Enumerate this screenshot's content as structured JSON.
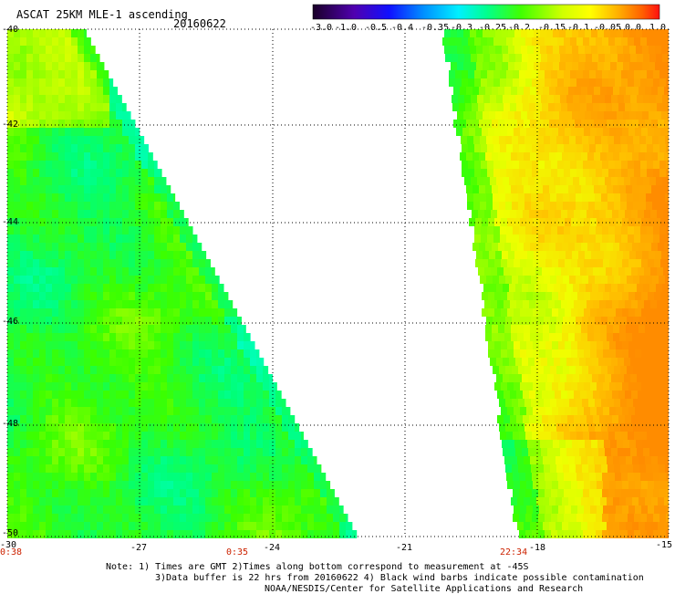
{
  "header": {
    "title": "ASCAT 25KM MLE-1 ascending",
    "date": "20160622"
  },
  "colorbar": {
    "labels": [
      "-3.0",
      "-1.0",
      "-0.5",
      "-0.4",
      "-0.35",
      "-0.3",
      "-0.25",
      "-0.2",
      "-0.15",
      "-0.1",
      "-0.05",
      "0.0",
      "1.0"
    ],
    "colors": [
      "#1a0030",
      "#4b00a0",
      "#1a1aff",
      "#0080ff",
      "#00c8ff",
      "#00ffd8",
      "#00ff70",
      "#40ff00",
      "#c0ff00",
      "#ffff00",
      "#ffc000",
      "#ff8000",
      "#ff2000"
    ]
  },
  "axes": {
    "x_ticks": [
      "-30",
      "-27",
      "-24",
      "-21",
      "-18",
      "-15"
    ],
    "y_ticks": [
      "-40",
      "-42",
      "-44",
      "-46",
      "-48",
      "-50"
    ],
    "lon_range": [
      -30,
      -15
    ],
    "lat_range": [
      -40,
      -50
    ]
  },
  "times": {
    "t1": "0:38",
    "t2": "0:35",
    "t3": "22:34"
  },
  "notes": {
    "line1": "Note: 1) Times are GMT 2)Times along bottom correspond to measurement at -45S",
    "line2": "3)Data buffer is 22 hrs from 20160622 4) Black wind barbs indicate possible contamination",
    "line3": "NOAA/NESDIS/Center for Satellite Applications and Research"
  }
}
